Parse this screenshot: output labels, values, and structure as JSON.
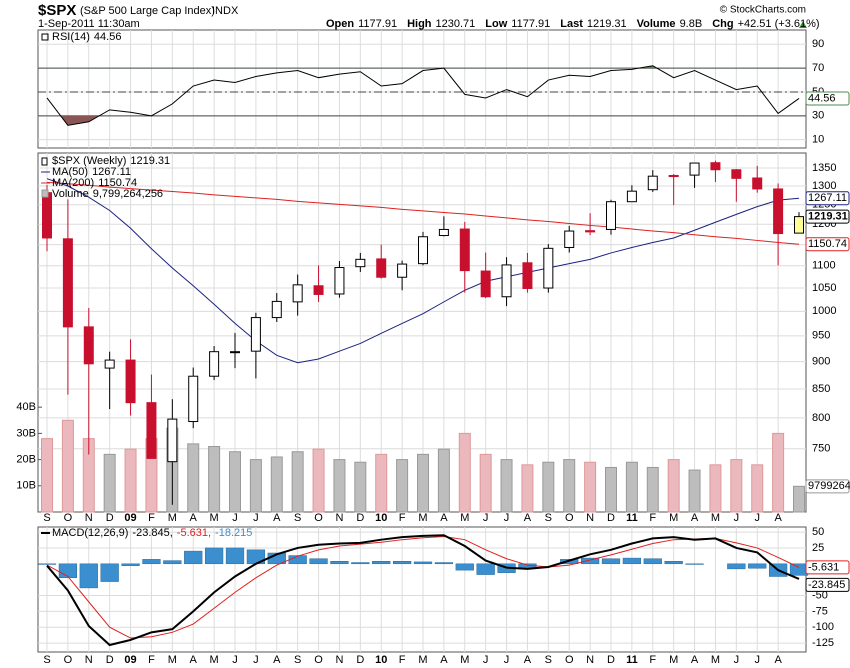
{
  "header": {
    "symbol": "$SPX",
    "name": "(S&P 500 Large Cap Index)",
    "exchange": "INDX",
    "date": "1-Sep-2011 11:30am",
    "labels": [
      "Open",
      "High",
      "Low",
      "Last",
      "Volume",
      "Chg"
    ],
    "volume": "9.8B",
    "change": "+42.51 (+3.61%)",
    "copyright": "© StockCharts.com"
  },
  "chart_data": [
    {
      "type": "rsi",
      "legend": "RSI(14)",
      "series": [
        {
          "color": "#000000",
          "values": [
            45,
            22,
            25,
            35,
            33,
            30,
            40,
            55,
            60,
            58,
            63,
            66,
            68,
            62,
            65,
            67,
            55,
            57,
            68,
            70,
            48,
            45,
            52,
            46,
            60,
            64,
            63,
            68,
            69,
            72,
            62,
            68,
            60,
            52,
            55,
            32,
            44.56
          ]
        }
      ],
      "ylim": [
        3,
        102
      ],
      "yticks": [
        10,
        30,
        50,
        70,
        90
      ],
      "levels": [
        30,
        50,
        70
      ],
      "overbought_color": "#4e8a4e",
      "oversold_color": "#8a5555",
      "grid": true
    },
    {
      "type": "candlestick",
      "legend": "$SPX (Weekly)",
      "categories": [
        "S",
        "O",
        "N",
        "D",
        "09",
        "F",
        "M",
        "A",
        "M",
        "J",
        "J",
        "A",
        "S",
        "O",
        "N",
        "D",
        "10",
        "F",
        "M",
        "A",
        "M",
        "J",
        "J",
        "A",
        "S",
        "O",
        "N",
        "D",
        "11",
        "F",
        "M",
        "A",
        "M",
        "J",
        "J",
        "A",
        null
      ],
      "open": [
        1282,
        1164,
        968,
        888,
        903,
        826,
        730,
        794,
        873,
        918,
        920,
        987,
        1020,
        1055,
        1037,
        1098,
        1116,
        1074,
        1105,
        1172,
        1188,
        1088,
        1031,
        1107,
        1050,
        1143,
        1184,
        1187,
        1258,
        1290,
        1329,
        1330,
        1365,
        1345,
        1322,
        1292,
        1177.91
      ],
      "high": [
        1303,
        1264,
        1007,
        919,
        943,
        876,
        832,
        889,
        930,
        956,
        997,
        1039,
        1080,
        1101,
        1111,
        1130,
        1150,
        1112,
        1181,
        1220,
        1206,
        1131,
        1120,
        1130,
        1151,
        1196,
        1228,
        1263,
        1302,
        1344,
        1333,
        1364,
        1371,
        1347,
        1356,
        1307,
        1230.71
      ],
      "low": [
        1134,
        840,
        741,
        815,
        804,
        735,
        667,
        783,
        866,
        888,
        869,
        978,
        991,
        1020,
        1029,
        1086,
        1071,
        1045,
        1101,
        1170,
        1040,
        1028,
        1011,
        1040,
        1040,
        1131,
        1173,
        1174,
        1257,
        1284,
        1249,
        1295,
        1311,
        1258,
        1282,
        1101,
        1177.91
      ],
      "close": [
        1166,
        968,
        896,
        903,
        826,
        735,
        798,
        873,
        919,
        919,
        987,
        1021,
        1057,
        1036,
        1096,
        1115,
        1074,
        1104,
        1169,
        1187,
        1089,
        1031,
        1102,
        1049,
        1141,
        1183,
        1181,
        1258,
        1286,
        1327,
        1326,
        1364,
        1345,
        1321,
        1292,
        1176.8,
        1219.31
      ],
      "up_color": "#ffffff",
      "down_color": "#c8102e",
      "last_color": "#ffff99",
      "log_scale": true,
      "ylim": [
        657,
        1393
      ],
      "yticks": [
        750,
        800,
        850,
        900,
        950,
        1000,
        1050,
        1100,
        1150,
        1200,
        1250,
        1300,
        1350
      ],
      "grid": true,
      "series": [
        {
          "name": "MA(50)",
          "color": "#1a237e",
          "values": [
            1320,
            1300,
            1270,
            1235,
            1190,
            1140,
            1095,
            1055,
            1015,
            975,
            940,
            912,
            898,
            905,
            920,
            935,
            955,
            975,
            995,
            1020,
            1045,
            1065,
            1075,
            1085,
            1095,
            1105,
            1115,
            1130,
            1143,
            1155,
            1166,
            1185,
            1205,
            1225,
            1245,
            1262,
            1267.11
          ]
        },
        {
          "name": "MA(200)",
          "color": "#e02020",
          "values": [
            1310,
            1306,
            1302,
            1297,
            1293,
            1289,
            1285,
            1281,
            1276,
            1272,
            1268,
            1264,
            1259,
            1255,
            1251,
            1247,
            1243,
            1238,
            1234,
            1230,
            1226,
            1221,
            1216,
            1211,
            1207,
            1202,
            1197,
            1193,
            1188,
            1183,
            1179,
            1174,
            1169,
            1165,
            1160,
            1155,
            1150.74
          ]
        }
      ],
      "volume": {
        "name": "Volume",
        "values": [
          28000000000.0,
          35000000000.0,
          28000000000.0,
          22000000000.0,
          24000000000.0,
          28000000000.0,
          32000000000.0,
          26000000000.0,
          25000000000.0,
          23000000000.0,
          20000000000.0,
          21000000000.0,
          23000000000.0,
          24000000000.0,
          20000000000.0,
          19000000000.0,
          22000000000.0,
          20000000000.0,
          22000000000.0,
          24000000000.0,
          30000000000.0,
          22000000000.0,
          20000000000.0,
          18000000000.0,
          19000000000.0,
          20000000000.0,
          19000000000.0,
          17000000000.0,
          19000000000.0,
          17000000000.0,
          20000000000.0,
          16000000000.0,
          18000000000.0,
          20000000000.0,
          18000000000.0,
          30000000000.0,
          9799264256
        ],
        "last_label": "9,799,264,256",
        "last_axis_label": "9799264",
        "up_color": "#bdbdbd",
        "down_color": "#eab8bd",
        "ylim": [
          0,
          137000000000.0
        ],
        "yticks": [
          {
            "value": 10000000000.0,
            "label": "10B"
          },
          {
            "value": 20000000000.0,
            "label": "20B"
          },
          {
            "value": 30000000000.0,
            "label": "30B"
          },
          {
            "value": 40000000000.0,
            "label": "40B"
          }
        ]
      }
    },
    {
      "type": "macd",
      "legend": "MACD(12,26,9)",
      "legend_labels": [
        "-23.845,",
        "-5.631,",
        "-18.215"
      ],
      "series": [
        {
          "color": "#000000",
          "values": [
            -3,
            -42,
            -98,
            -128,
            -120,
            -108,
            -103,
            -75,
            -45,
            -20,
            0,
            15,
            25,
            30,
            32,
            33,
            38,
            42,
            44,
            45,
            28,
            5,
            -6,
            -8,
            -5,
            5,
            15,
            22,
            32,
            40,
            42,
            38,
            40,
            25,
            18,
            -10,
            -23.845
          ]
        },
        {
          "color": "#e02020",
          "values": [
            -2,
            -20,
            -60,
            -100,
            -117,
            -115,
            -108,
            -95,
            -70,
            -45,
            -22,
            -2,
            12,
            22,
            28,
            31,
            34,
            38,
            41,
            43,
            38,
            22,
            8,
            -2,
            -5,
            -2,
            6,
            14,
            23,
            32,
            38,
            39,
            40,
            33,
            25,
            10,
            -5.631
          ]
        },
        {
          "color": "#3b8fcf",
          "values": [
            -1,
            -22,
            -38,
            -28,
            -3,
            7,
            5,
            20,
            25,
            25,
            22,
            17,
            13,
            8,
            4,
            2,
            4,
            4,
            3,
            2,
            -10,
            -17,
            -14,
            -6,
            0,
            7,
            9,
            8,
            9,
            8,
            4,
            -1,
            0,
            -8,
            -7,
            -20,
            -18.215
          ]
        }
      ],
      "ylim": [
        -139,
        58
      ],
      "yticks": [
        -125,
        -100,
        -75,
        -50,
        25,
        50
      ],
      "grid": true
    }
  ]
}
